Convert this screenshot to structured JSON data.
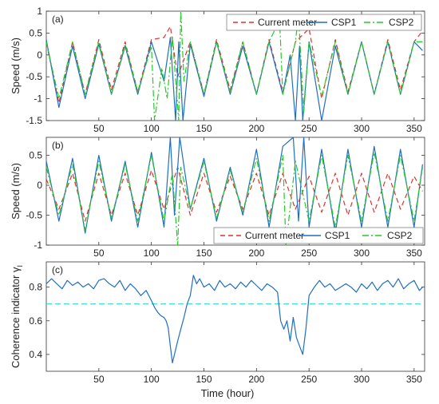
{
  "figure": {
    "xlabel": "Time (hour)"
  },
  "colors": {
    "current_meter": "#e03030",
    "csp1": "#1f6fc0",
    "csp2": "#22cc22",
    "threshold": "#2ed6d6",
    "axis": "#333333"
  },
  "chart_data": [
    {
      "type": "line",
      "panel_label": "(a)",
      "ylabel": "Speed (m/s)",
      "xlim": [
        0,
        360
      ],
      "ylim": [
        -1.5,
        1
      ],
      "xticks": [
        "50",
        "100",
        "150",
        "200",
        "250",
        "300",
        "350"
      ],
      "yticks": [
        "-1.5",
        "-1",
        "-0.5",
        "0",
        "0.5",
        "1"
      ],
      "legend": {
        "position": "top-right",
        "entries": [
          "Current meter",
          "CSP1",
          "CSP2"
        ]
      },
      "series": [
        {
          "name": "Current meter",
          "style": "dashed",
          "x": [
            0,
            12,
            25,
            37,
            50,
            62,
            75,
            87,
            100,
            112,
            118,
            125,
            137,
            150,
            162,
            175,
            187,
            200,
            212,
            225,
            237,
            250,
            262,
            275,
            287,
            300,
            312,
            325,
            337,
            350,
            358
          ],
          "y": [
            0.3,
            -1.1,
            0.3,
            -0.9,
            0.35,
            -0.8,
            0.3,
            -0.85,
            0.35,
            0.4,
            0.65,
            -0.5,
            0.3,
            -0.9,
            0.35,
            -0.8,
            0.3,
            -0.9,
            0.35,
            -0.85,
            0.3,
            0.6,
            -1.0,
            0.35,
            -0.85,
            0.3,
            -0.9,
            0.35,
            -0.8,
            0.3,
            0.55
          ]
        },
        {
          "name": "CSP1",
          "style": "solid",
          "x": [
            0,
            12,
            25,
            37,
            50,
            62,
            75,
            87,
            100,
            112,
            118,
            123,
            126,
            130,
            137,
            150,
            162,
            175,
            187,
            200,
            212,
            225,
            232,
            237,
            241,
            244,
            250,
            262,
            275,
            287,
            300,
            312,
            325,
            337,
            350,
            358
          ],
          "y": [
            0.35,
            -1.2,
            0.2,
            -1.0,
            0.25,
            -0.9,
            0.2,
            -0.9,
            0.3,
            -0.6,
            0.4,
            -1.5,
            0.3,
            -1.5,
            0.25,
            -0.95,
            0.3,
            -0.9,
            0.2,
            -0.9,
            0.3,
            -0.9,
            0.0,
            -1.5,
            0.2,
            -1.5,
            0.3,
            -1.5,
            0.2,
            -0.9,
            0.3,
            -0.9,
            0.3,
            -0.9,
            0.3,
            0.1
          ]
        },
        {
          "name": "CSP2",
          "style": "dashdot",
          "x": [
            0,
            12,
            25,
            37,
            50,
            62,
            75,
            87,
            100,
            103,
            110,
            115,
            120,
            126,
            128,
            131,
            137,
            150,
            162,
            175,
            187,
            200,
            212,
            222,
            225,
            237,
            240,
            245,
            250,
            262,
            275,
            287,
            300,
            312,
            325,
            337,
            350,
            358
          ],
          "y": [
            0.3,
            -1.0,
            0.3,
            -0.9,
            0.3,
            -0.9,
            0.25,
            -0.85,
            0.2,
            -1.5,
            -0.3,
            -1.0,
            0.4,
            -1.5,
            1.0,
            -0.6,
            0.3,
            -0.9,
            0.3,
            -0.85,
            0.3,
            -0.9,
            0.3,
            0.8,
            -0.9,
            0.3,
            0.9,
            -1.3,
            0.3,
            -0.95,
            0.3,
            -0.9,
            0.3,
            -0.9,
            0.3,
            -0.9,
            0.3,
            0.3
          ]
        }
      ]
    },
    {
      "type": "line",
      "panel_label": "(b)",
      "ylabel": "Speed (m/s)",
      "xlim": [
        0,
        360
      ],
      "ylim": [
        -1,
        0.8
      ],
      "xticks": [
        "50",
        "100",
        "150",
        "200",
        "250",
        "300",
        "350"
      ],
      "yticks": [
        "-1",
        "-0.5",
        "0",
        "0.5"
      ],
      "legend": {
        "position": "bottom-right",
        "entries": [
          "Current meter",
          "CSP1",
          "CSP2"
        ]
      },
      "series": [
        {
          "name": "Current meter",
          "style": "dashed",
          "x": [
            0,
            12,
            25,
            37,
            50,
            62,
            75,
            87,
            100,
            112,
            125,
            137,
            150,
            162,
            175,
            187,
            200,
            212,
            225,
            237,
            250,
            262,
            275,
            287,
            300,
            312,
            325,
            337,
            350,
            358
          ],
          "y": [
            0.1,
            -0.4,
            0.2,
            -0.6,
            0.2,
            -0.5,
            0.2,
            -0.5,
            0.25,
            -0.4,
            0.3,
            -0.5,
            0.2,
            -0.45,
            0.15,
            -0.4,
            0.2,
            -0.5,
            0.2,
            -0.4,
            0.15,
            -0.45,
            0.2,
            -0.5,
            0.2,
            -0.45,
            0.2,
            -0.4,
            0.15,
            -0.1
          ]
        },
        {
          "name": "CSP1",
          "style": "solid",
          "x": [
            0,
            12,
            25,
            37,
            50,
            62,
            75,
            87,
            100,
            112,
            118,
            122,
            127,
            137,
            150,
            162,
            175,
            187,
            200,
            212,
            225,
            235,
            240,
            245,
            250,
            262,
            275,
            287,
            300,
            312,
            325,
            337,
            350,
            358
          ],
          "y": [
            0.4,
            -0.6,
            0.45,
            -0.8,
            0.5,
            -0.6,
            0.4,
            -0.7,
            0.55,
            -0.7,
            0.8,
            -0.5,
            0.8,
            -0.4,
            0.45,
            -0.6,
            0.3,
            -0.5,
            0.6,
            -0.7,
            0.65,
            0.8,
            -0.6,
            0.8,
            -0.7,
            0.6,
            -0.8,
            0.6,
            -0.7,
            0.65,
            -0.7,
            0.6,
            -0.7,
            0.35
          ]
        },
        {
          "name": "CSP2",
          "style": "dashdot",
          "x": [
            0,
            12,
            25,
            37,
            50,
            62,
            75,
            87,
            100,
            112,
            120,
            125,
            128,
            137,
            150,
            162,
            175,
            187,
            200,
            212,
            225,
            228,
            237,
            250,
            262,
            275,
            287,
            300,
            312,
            325,
            337,
            350,
            358
          ],
          "y": [
            0.3,
            -0.5,
            0.35,
            -0.75,
            0.4,
            -0.55,
            0.35,
            -0.6,
            0.5,
            -0.6,
            0.2,
            -1.0,
            0.3,
            -0.4,
            0.4,
            -0.55,
            0.25,
            -0.45,
            0.45,
            -0.6,
            0.5,
            -1.0,
            0.4,
            -0.6,
            0.5,
            -0.7,
            0.5,
            -0.6,
            0.55,
            -0.6,
            0.5,
            -0.6,
            0.3
          ]
        }
      ]
    },
    {
      "type": "line",
      "panel_label": "(c)",
      "ylabel": "Coherence indicator γ",
      "ylabel_subscript": "I",
      "xlim": [
        0,
        360
      ],
      "ylim": [
        0.3,
        0.95
      ],
      "xticks": [
        "50",
        "100",
        "150",
        "200",
        "250",
        "300",
        "350"
      ],
      "yticks": [
        "0.4",
        "0.6",
        "0.8"
      ],
      "threshold": 0.7,
      "series": [
        {
          "name": "",
          "style": "solid",
          "x": [
            0,
            5,
            10,
            15,
            20,
            25,
            30,
            35,
            40,
            45,
            50,
            55,
            60,
            65,
            70,
            75,
            80,
            85,
            90,
            95,
            100,
            103,
            106,
            109,
            112,
            114,
            116,
            118,
            120,
            122,
            125,
            128,
            131,
            134,
            137,
            140,
            143,
            146,
            150,
            155,
            160,
            165,
            170,
            175,
            180,
            185,
            190,
            195,
            200,
            205,
            210,
            215,
            220,
            223,
            226,
            229,
            232,
            235,
            238,
            241,
            244,
            247,
            250,
            255,
            260,
            265,
            270,
            275,
            280,
            285,
            290,
            295,
            300,
            305,
            310,
            315,
            320,
            325,
            330,
            335,
            340,
            345,
            350,
            355,
            358
          ],
          "y": [
            0.82,
            0.85,
            0.82,
            0.79,
            0.84,
            0.81,
            0.83,
            0.8,
            0.82,
            0.79,
            0.84,
            0.85,
            0.82,
            0.8,
            0.84,
            0.78,
            0.82,
            0.79,
            0.75,
            0.78,
            0.72,
            0.68,
            0.65,
            0.63,
            0.62,
            0.6,
            0.56,
            0.45,
            0.35,
            0.4,
            0.48,
            0.55,
            0.62,
            0.7,
            0.75,
            0.87,
            0.82,
            0.85,
            0.8,
            0.82,
            0.78,
            0.84,
            0.8,
            0.82,
            0.79,
            0.83,
            0.8,
            0.84,
            0.81,
            0.78,
            0.82,
            0.8,
            0.77,
            0.6,
            0.55,
            0.6,
            0.48,
            0.62,
            0.5,
            0.45,
            0.4,
            0.55,
            0.75,
            0.8,
            0.84,
            0.8,
            0.82,
            0.78,
            0.8,
            0.82,
            0.8,
            0.77,
            0.82,
            0.79,
            0.83,
            0.78,
            0.82,
            0.84,
            0.8,
            0.85,
            0.79,
            0.82,
            0.84,
            0.78,
            0.8
          ]
        }
      ]
    }
  ]
}
